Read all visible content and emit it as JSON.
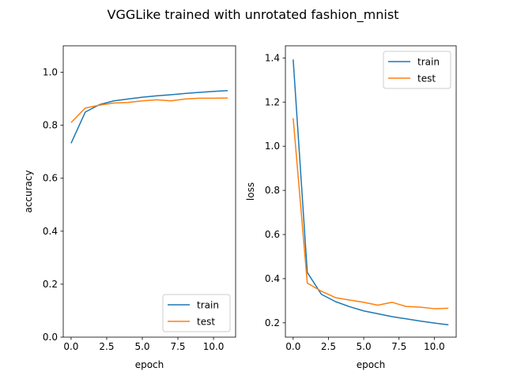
{
  "figure": {
    "title": "VGGLike trained with unrotated fashion_mnist"
  },
  "colors": {
    "train": "#1f77b4",
    "test": "#ff7f0e",
    "axis": "#000000",
    "background": "#ffffff"
  },
  "chart_data": [
    {
      "type": "line",
      "title": "",
      "xlabel": "epoch",
      "ylabel": "accuracy",
      "xlim": [
        -0.55,
        11.55
      ],
      "ylim": [
        0.0,
        1.1
      ],
      "xticks": [
        0,
        2.5,
        5,
        7.5,
        10
      ],
      "xtick_labels": [
        "0.0",
        "2.5",
        "5.0",
        "7.5",
        "10.0"
      ],
      "yticks": [
        0.0,
        0.2,
        0.4,
        0.6,
        0.8,
        1.0
      ],
      "ytick_labels": [
        "0.0",
        "0.2",
        "0.4",
        "0.6",
        "0.8",
        "1.0"
      ],
      "grid": false,
      "legend": "lower right",
      "x": [
        0,
        1,
        2,
        3,
        4,
        5,
        6,
        7,
        8,
        9,
        10,
        11
      ],
      "series": [
        {
          "name": "train",
          "values": [
            0.732,
            0.85,
            0.878,
            0.892,
            0.899,
            0.906,
            0.911,
            0.915,
            0.92,
            0.924,
            0.928,
            0.931
          ]
        },
        {
          "name": "test",
          "values": [
            0.81,
            0.865,
            0.876,
            0.884,
            0.886,
            0.892,
            0.896,
            0.892,
            0.899,
            0.902,
            0.902,
            0.903
          ]
        }
      ]
    },
    {
      "type": "line",
      "title": "",
      "xlabel": "epoch",
      "ylabel": "loss",
      "xlim": [
        -0.55,
        11.55
      ],
      "ylim": [
        0.135,
        1.455
      ],
      "xticks": [
        0,
        2.5,
        5,
        7.5,
        10
      ],
      "xtick_labels": [
        "0.0",
        "2.5",
        "5.0",
        "7.5",
        "10.0"
      ],
      "yticks": [
        0.2,
        0.4,
        0.6,
        0.8,
        1.0,
        1.2,
        1.4
      ],
      "ytick_labels": [
        "0.2",
        "0.4",
        "0.6",
        "0.8",
        "1.0",
        "1.2",
        "1.4"
      ],
      "grid": false,
      "legend": "upper right",
      "x": [
        0,
        1,
        2,
        3,
        4,
        5,
        6,
        7,
        8,
        9,
        10,
        11
      ],
      "series": [
        {
          "name": "train",
          "values": [
            1.393,
            0.428,
            0.329,
            0.296,
            0.273,
            0.254,
            0.241,
            0.228,
            0.218,
            0.208,
            0.199,
            0.191
          ]
        },
        {
          "name": "test",
          "values": [
            1.127,
            0.38,
            0.343,
            0.314,
            0.303,
            0.293,
            0.28,
            0.293,
            0.274,
            0.271,
            0.264,
            0.266
          ]
        }
      ]
    }
  ]
}
